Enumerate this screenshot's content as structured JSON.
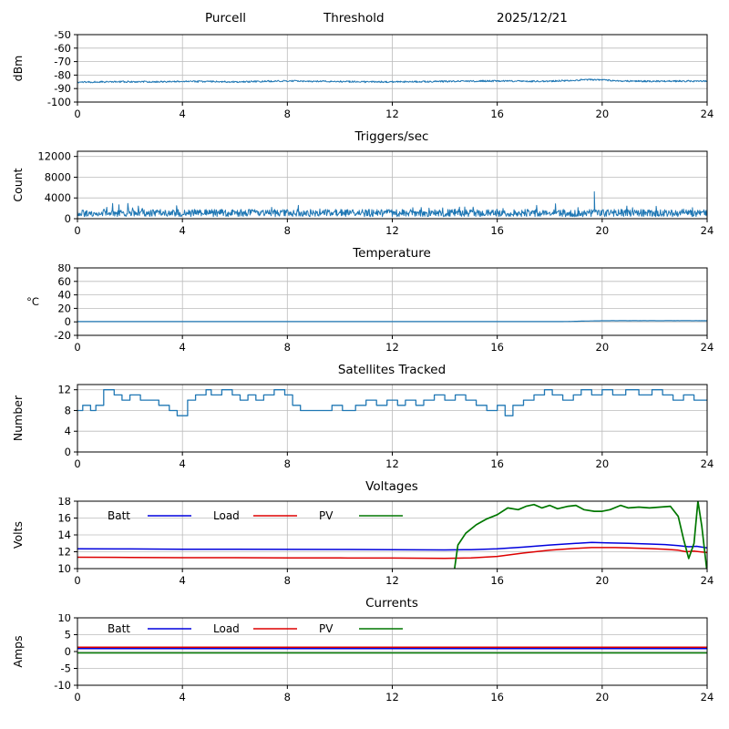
{
  "header": {
    "station": "Purcell",
    "mode": "Threshold",
    "date": "2025/12/21"
  },
  "colors": {
    "data_line": "#1f77b4",
    "batt": "#0000dd",
    "load": "#dd0000",
    "pv": "#007700",
    "grid": "#bbbbbb",
    "axis": "#000000"
  },
  "chart_data": [
    {
      "type": "line",
      "title": "",
      "ylabel": "dBm",
      "ylim": [
        -100,
        -50
      ],
      "yticks": [
        -100,
        -90,
        -80,
        -70,
        -60,
        -50
      ],
      "xlim": [
        0,
        24
      ],
      "xticks": [
        0,
        4,
        8,
        12,
        16,
        20,
        24
      ],
      "grid": true,
      "series": [
        {
          "name": "signal-level-dbm",
          "color": "#1f77b4",
          "mode": "noisy",
          "seed": 7,
          "dt": 0.02,
          "noise": 0.6,
          "width": 1.0,
          "points": [
            [
              0,
              -85.2
            ],
            [
              1,
              -85.0
            ],
            [
              2,
              -84.9
            ],
            [
              3,
              -85.0
            ],
            [
              4,
              -84.6
            ],
            [
              5,
              -84.8
            ],
            [
              6,
              -85.0
            ],
            [
              7,
              -84.7
            ],
            [
              8,
              -84.3
            ],
            [
              9,
              -84.6
            ],
            [
              10,
              -84.8
            ],
            [
              11,
              -85.0
            ],
            [
              12,
              -85.0
            ],
            [
              13,
              -84.9
            ],
            [
              14,
              -84.7
            ],
            [
              15,
              -84.5
            ],
            [
              16,
              -84.4
            ],
            [
              17,
              -84.6
            ],
            [
              18,
              -84.5
            ],
            [
              19,
              -83.8
            ],
            [
              19.5,
              -83.3
            ],
            [
              20,
              -83.6
            ],
            [
              20.5,
              -84.2
            ],
            [
              21,
              -84.5
            ],
            [
              22,
              -84.6
            ],
            [
              23,
              -84.5
            ],
            [
              24,
              -84.4
            ]
          ]
        }
      ]
    },
    {
      "type": "line",
      "title": "Triggers/sec",
      "ylabel": "Count",
      "ylim": [
        0,
        13000
      ],
      "yticks": [
        0,
        4000,
        8000,
        12000
      ],
      "xlim": [
        0,
        24
      ],
      "xticks": [
        0,
        4,
        8,
        12,
        16,
        20,
        24
      ],
      "grid": true,
      "series": [
        {
          "name": "trigger-rate",
          "color": "#1f77b4",
          "mode": "noisy",
          "seed": 13,
          "dt": 0.02,
          "noise": 700,
          "spike_prob": 0.05,
          "spike_amp": 1500,
          "clamp_min": 300,
          "width": 1.0,
          "points": [
            [
              0,
              1100
            ],
            [
              24,
              1100
            ]
          ],
          "spikes": [
            [
              19.7,
              5200
            ]
          ]
        }
      ]
    },
    {
      "type": "line",
      "title": "Temperature",
      "ylabel": "°C",
      "ylabel_horizontal": true,
      "ylim": [
        -20,
        80
      ],
      "yticks": [
        -20,
        0,
        20,
        40,
        60,
        80
      ],
      "xlim": [
        0,
        24
      ],
      "xticks": [
        0,
        4,
        8,
        12,
        16,
        20,
        24
      ],
      "grid": true,
      "series": [
        {
          "name": "temperature-c",
          "color": "#1f77b4",
          "mode": "noisy",
          "seed": 5,
          "dt": 0.05,
          "noise": 0.05,
          "width": 1.2,
          "points": [
            [
              0,
              0.4
            ],
            [
              18.5,
              0.4
            ],
            [
              19,
              0.8
            ],
            [
              19.6,
              1.4
            ],
            [
              20.2,
              1.7
            ],
            [
              24,
              1.7
            ]
          ]
        }
      ]
    },
    {
      "type": "line",
      "title": "Satellites Tracked",
      "ylabel": "Number",
      "ylim": [
        0,
        13
      ],
      "yticks": [
        0,
        4,
        8,
        12
      ],
      "xlim": [
        0,
        24
      ],
      "xticks": [
        0,
        4,
        8,
        12,
        16,
        20,
        24
      ],
      "grid": true,
      "series": [
        {
          "name": "satellites-tracked",
          "color": "#1f77b4",
          "mode": "steps",
          "width": 1.3,
          "steps": [
            [
              0,
              8
            ],
            [
              0.2,
              9
            ],
            [
              0.5,
              8
            ],
            [
              0.7,
              9
            ],
            [
              1.0,
              12
            ],
            [
              1.4,
              11
            ],
            [
              1.7,
              10
            ],
            [
              2.0,
              11
            ],
            [
              2.4,
              10
            ],
            [
              2.8,
              10
            ],
            [
              3.1,
              9
            ],
            [
              3.5,
              8
            ],
            [
              3.8,
              7
            ],
            [
              4.2,
              10
            ],
            [
              4.5,
              11
            ],
            [
              4.9,
              12
            ],
            [
              5.1,
              11
            ],
            [
              5.5,
              12
            ],
            [
              5.9,
              11
            ],
            [
              6.2,
              10
            ],
            [
              6.5,
              11
            ],
            [
              6.8,
              10
            ],
            [
              7.1,
              11
            ],
            [
              7.5,
              12
            ],
            [
              7.9,
              11
            ],
            [
              8.2,
              9
            ],
            [
              8.5,
              8
            ],
            [
              9.4,
              8
            ],
            [
              9.7,
              9
            ],
            [
              10.1,
              8
            ],
            [
              10.6,
              9
            ],
            [
              11.0,
              10
            ],
            [
              11.4,
              9
            ],
            [
              11.8,
              10
            ],
            [
              12.2,
              9
            ],
            [
              12.5,
              10
            ],
            [
              12.9,
              9
            ],
            [
              13.2,
              10
            ],
            [
              13.6,
              11
            ],
            [
              14.0,
              10
            ],
            [
              14.4,
              11
            ],
            [
              14.8,
              10
            ],
            [
              15.2,
              9
            ],
            [
              15.6,
              8
            ],
            [
              16.0,
              9
            ],
            [
              16.3,
              7
            ],
            [
              16.6,
              9
            ],
            [
              17.0,
              10
            ],
            [
              17.4,
              11
            ],
            [
              17.8,
              12
            ],
            [
              18.1,
              11
            ],
            [
              18.5,
              10
            ],
            [
              18.9,
              11
            ],
            [
              19.2,
              12
            ],
            [
              19.6,
              11
            ],
            [
              20.0,
              12
            ],
            [
              20.4,
              11
            ],
            [
              20.9,
              12
            ],
            [
              21.4,
              11
            ],
            [
              21.9,
              12
            ],
            [
              22.3,
              11
            ],
            [
              22.7,
              10
            ],
            [
              23.1,
              11
            ],
            [
              23.5,
              10
            ],
            [
              24,
              10
            ]
          ]
        }
      ]
    },
    {
      "type": "line",
      "title": "Voltages",
      "ylabel": "Volts",
      "ylim": [
        10,
        18
      ],
      "yticks": [
        10,
        12,
        14,
        16,
        18
      ],
      "xlim": [
        0,
        24
      ],
      "xticks": [
        0,
        4,
        8,
        12,
        16,
        20,
        24
      ],
      "grid": true,
      "legend": {
        "dy": 16,
        "items": [
          {
            "label": "Batt",
            "color": "#0000dd"
          },
          {
            "label": "Load",
            "color": "#dd0000"
          },
          {
            "label": "PV",
            "color": "#007700"
          }
        ]
      },
      "series": [
        {
          "name": "battery-voltage",
          "color": "#0000dd",
          "mode": "plain",
          "width": 1.5,
          "points": [
            [
              0,
              12.35
            ],
            [
              2,
              12.33
            ],
            [
              4,
              12.3
            ],
            [
              6,
              12.3
            ],
            [
              8,
              12.28
            ],
            [
              10,
              12.27
            ],
            [
              12,
              12.25
            ],
            [
              14,
              12.22
            ],
            [
              15,
              12.25
            ],
            [
              16,
              12.35
            ],
            [
              17,
              12.55
            ],
            [
              18,
              12.8
            ],
            [
              19,
              13.0
            ],
            [
              19.6,
              13.1
            ],
            [
              20.2,
              13.05
            ],
            [
              21,
              13.0
            ],
            [
              21.8,
              12.92
            ],
            [
              22.4,
              12.85
            ],
            [
              22.9,
              12.72
            ],
            [
              23.3,
              12.6
            ],
            [
              23.6,
              12.65
            ],
            [
              24,
              12.45
            ]
          ]
        },
        {
          "name": "load-voltage",
          "color": "#dd0000",
          "mode": "plain",
          "width": 1.5,
          "points": [
            [
              0,
              11.35
            ],
            [
              2,
              11.33
            ],
            [
              4,
              11.3
            ],
            [
              6,
              11.3
            ],
            [
              8,
              11.28
            ],
            [
              10,
              11.27
            ],
            [
              12,
              11.25
            ],
            [
              14,
              11.22
            ],
            [
              15,
              11.28
            ],
            [
              16,
              11.45
            ],
            [
              17,
              11.85
            ],
            [
              18,
              12.2
            ],
            [
              19,
              12.4
            ],
            [
              19.6,
              12.5
            ],
            [
              20.5,
              12.5
            ],
            [
              21,
              12.45
            ],
            [
              21.8,
              12.38
            ],
            [
              22.4,
              12.3
            ],
            [
              22.9,
              12.18
            ],
            [
              23.2,
              12.0
            ],
            [
              23.5,
              12.08
            ],
            [
              24,
              11.9
            ]
          ]
        },
        {
          "name": "pv-voltage",
          "color": "#007700",
          "mode": "plain",
          "width": 1.7,
          "points": [
            [
              14.35,
              9.5
            ],
            [
              14.5,
              12.8
            ],
            [
              14.8,
              14.2
            ],
            [
              15.2,
              15.2
            ],
            [
              15.6,
              15.9
            ],
            [
              16.0,
              16.4
            ],
            [
              16.4,
              17.2
            ],
            [
              16.8,
              17.0
            ],
            [
              17.1,
              17.4
            ],
            [
              17.4,
              17.6
            ],
            [
              17.7,
              17.2
            ],
            [
              18.0,
              17.5
            ],
            [
              18.3,
              17.1
            ],
            [
              18.7,
              17.4
            ],
            [
              19.0,
              17.5
            ],
            [
              19.3,
              17.0
            ],
            [
              19.7,
              16.8
            ],
            [
              20.0,
              16.8
            ],
            [
              20.3,
              17.0
            ],
            [
              20.7,
              17.5
            ],
            [
              21.0,
              17.2
            ],
            [
              21.4,
              17.3
            ],
            [
              21.8,
              17.2
            ],
            [
              22.2,
              17.3
            ],
            [
              22.6,
              17.4
            ],
            [
              22.9,
              16.2
            ],
            [
              23.1,
              13.5
            ],
            [
              23.3,
              11.2
            ],
            [
              23.5,
              13.0
            ],
            [
              23.65,
              18.0
            ],
            [
              23.8,
              15.0
            ],
            [
              24,
              9.5
            ]
          ]
        }
      ]
    },
    {
      "type": "line",
      "title": "Currents",
      "ylabel": "Amps",
      "ylim": [
        -10,
        10
      ],
      "yticks": [
        -10,
        -5,
        0,
        5,
        10
      ],
      "xlim": [
        0,
        24
      ],
      "xticks": [
        0,
        4,
        8,
        12,
        16,
        20,
        24
      ],
      "grid": true,
      "legend": {
        "dy": 12,
        "items": [
          {
            "label": "Batt",
            "color": "#0000dd"
          },
          {
            "label": "Load",
            "color": "#dd0000"
          },
          {
            "label": "PV",
            "color": "#007700"
          }
        ]
      },
      "series": [
        {
          "name": "battery-current",
          "color": "#0000dd",
          "mode": "plain",
          "width": 1.5,
          "points": [
            [
              0,
              0.9
            ],
            [
              24,
              0.9
            ]
          ]
        },
        {
          "name": "load-current",
          "color": "#dd0000",
          "mode": "plain",
          "width": 1.5,
          "points": [
            [
              0,
              1.3
            ],
            [
              24,
              1.3
            ]
          ]
        },
        {
          "name": "pv-current",
          "color": "#007700",
          "mode": "plain",
          "width": 1.5,
          "points": [
            [
              0,
              -0.4
            ],
            [
              24,
              -0.4
            ]
          ]
        }
      ]
    }
  ]
}
